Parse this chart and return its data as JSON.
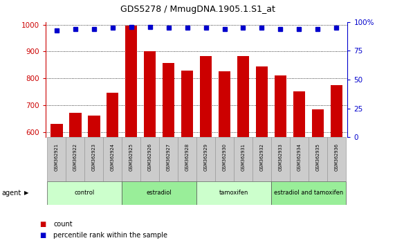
{
  "title": "GDS5278 / MmugDNA.1905.1.S1_at",
  "categories": [
    "GSM362921",
    "GSM362922",
    "GSM362923",
    "GSM362924",
    "GSM362925",
    "GSM362926",
    "GSM362927",
    "GSM362928",
    "GSM362929",
    "GSM362930",
    "GSM362931",
    "GSM362932",
    "GSM362933",
    "GSM362934",
    "GSM362935",
    "GSM362936"
  ],
  "bar_values": [
    630,
    670,
    660,
    745,
    997,
    900,
    858,
    830,
    882,
    825,
    882,
    845,
    810,
    752,
    685,
    775
  ],
  "dot_values_pct": [
    93,
    94,
    94,
    95,
    96,
    96,
    95,
    95,
    95,
    94,
    95,
    95,
    94,
    94,
    94,
    95
  ],
  "bar_color": "#cc0000",
  "dot_color": "#0000cc",
  "ylim_left": [
    580,
    1010
  ],
  "ylim_right": [
    0,
    100
  ],
  "yticks_left": [
    600,
    700,
    800,
    900,
    1000
  ],
  "yticks_right": [
    0,
    25,
    50,
    75,
    100
  ],
  "groups": [
    {
      "label": "control",
      "start": 0,
      "end": 4,
      "color": "#ccffcc"
    },
    {
      "label": "estradiol",
      "start": 4,
      "end": 8,
      "color": "#99ee99"
    },
    {
      "label": "tamoxifen",
      "start": 8,
      "end": 12,
      "color": "#ccffcc"
    },
    {
      "label": "estradiol and tamoxifen",
      "start": 12,
      "end": 16,
      "color": "#99ee99"
    }
  ],
  "agent_label": "agent",
  "legend_count_label": "count",
  "legend_pct_label": "percentile rank within the sample",
  "tick_color_left": "#cc0000",
  "tick_color_right": "#0000cc",
  "bar_width": 0.65,
  "label_gray": "#cccccc",
  "label_gray_edge": "#999999"
}
